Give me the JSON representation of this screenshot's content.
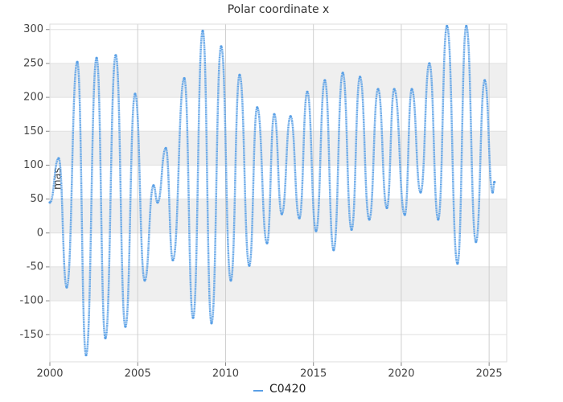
{
  "chart_data": {
    "type": "line",
    "title": "Polar coordinate x",
    "ylabel": "mas",
    "x": [
      2000.0,
      2000.5,
      2000.96,
      2001.56,
      2002.06,
      2002.66,
      2003.16,
      2003.75,
      2004.3,
      2004.85,
      2005.4,
      2005.9,
      2006.13,
      2006.6,
      2007.0,
      2007.65,
      2008.15,
      2008.7,
      2009.2,
      2009.75,
      2010.3,
      2010.8,
      2011.35,
      2011.8,
      2012.36,
      2012.77,
      2013.2,
      2013.7,
      2014.2,
      2014.65,
      2015.15,
      2015.65,
      2016.15,
      2016.67,
      2017.17,
      2017.65,
      2018.18,
      2018.68,
      2019.18,
      2019.6,
      2020.2,
      2020.6,
      2021.1,
      2021.6,
      2022.1,
      2022.6,
      2023.2,
      2023.7,
      2024.25,
      2024.75,
      2025.2,
      2025.3
    ],
    "series": [
      {
        "name": "C0420",
        "color": "#5aa0e6",
        "values": [
          45,
          110,
          -80,
          252,
          -180,
          258,
          -155,
          262,
          -138,
          205,
          -70,
          70,
          45,
          125,
          -40,
          228,
          -125,
          298,
          -133,
          275,
          -70,
          233,
          -48,
          185,
          -15,
          175,
          28,
          172,
          22,
          208,
          3,
          225,
          -25,
          236,
          5,
          230,
          20,
          212,
          37,
          212,
          27,
          212,
          60,
          250,
          20,
          305,
          -45,
          305,
          -13,
          225,
          60,
          75
        ]
      }
    ],
    "xlim": [
      2000,
      2026
    ],
    "xticks": [
      2000,
      2005,
      2010,
      2015,
      2020,
      2025
    ],
    "ylim": [
      -190,
      308
    ],
    "yticks": [
      -150,
      -100,
      -50,
      0,
      50,
      100,
      150,
      200,
      250,
      300
    ],
    "grid": true,
    "legend": "bottom"
  }
}
